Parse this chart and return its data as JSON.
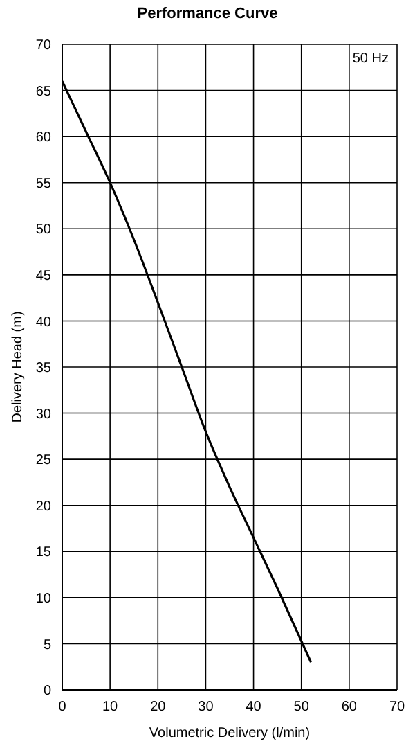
{
  "chart_data": {
    "type": "line",
    "title": "Performance Curve",
    "xlabel": "Volumetric Delivery (l/min)",
    "ylabel": "Delivery Head (m)",
    "annotations": [
      "50 Hz"
    ],
    "x": [
      0,
      5,
      10,
      15,
      20,
      25,
      30,
      35,
      40,
      45,
      52
    ],
    "series": [
      {
        "color": "#000000",
        "values": [
          66,
          60.5,
          55,
          48.8,
          42,
          35,
          28,
          22,
          16.5,
          11,
          3
        ]
      }
    ],
    "xlim": [
      0,
      70
    ],
    "xticks": [
      0,
      10,
      20,
      30,
      40,
      50,
      60,
      70
    ],
    "ylim": [
      0,
      70
    ],
    "yticks": [
      0,
      5,
      10,
      15,
      20,
      25,
      30,
      35,
      40,
      45,
      50,
      55,
      60,
      65,
      70
    ],
    "grid": true,
    "marker": "none",
    "line_style": "solid"
  }
}
